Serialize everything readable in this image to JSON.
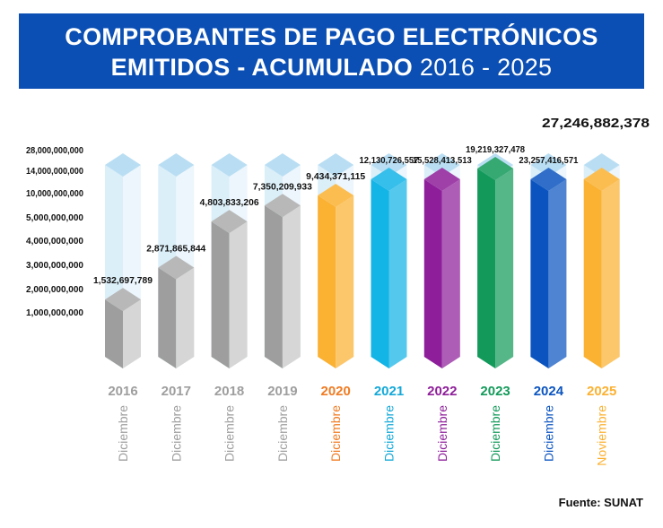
{
  "title_line1": "COMPROBANTES DE PAGO ELECTRÓNICOS",
  "title_line2": "EMITIDOS - ACUMULADO",
  "title_years": "2016 - 2025",
  "source": "Fuente: SUNAT",
  "chart_data": {
    "type": "bar",
    "title": "COMPROBANTES DE PAGO ELECTRÓNICOS EMITIDOS - ACUMULADO 2016 - 2025",
    "scale": "non-linear (broken axis)",
    "ytick_labels": [
      "28,000,000,000",
      "14,000,000,000",
      "10,000,000,000",
      "5,000,000,000",
      "4,000,000,000",
      "3,000,000,000",
      "2,000,000,000",
      "1,000,000,000"
    ],
    "ytick_values": [
      28000000000,
      14000000000,
      10000000000,
      5000000000,
      4000000000,
      3000000000,
      2000000000,
      1000000000
    ],
    "categories": [
      "2016",
      "2017",
      "2018",
      "2019",
      "2020",
      "2021",
      "2022",
      "2023",
      "2024",
      "2025"
    ],
    "periods": [
      "Diciembre",
      "Diciembre",
      "Diciembre",
      "Diciembre",
      "Diciembre",
      "Diciembre",
      "Diciembre",
      "Diciembre",
      "Diciembre",
      "Noviembre"
    ],
    "values": [
      1532697789,
      2871865844,
      4803833206,
      7350209933,
      9434371115,
      12130726557,
      15528413513,
      19219327478,
      23257416571,
      27246882378
    ],
    "value_labels": [
      "1,532,697,789",
      "2,871,865,844",
      "4,803,833,206",
      "7,350,209,933",
      "9,434,371,115",
      "12,130,726,557",
      "15,528,413,513",
      "19,219,327,478",
      "23,257,416,571",
      "27,246,882,378"
    ],
    "colors": {
      "2016": "#9e9e9e",
      "2017": "#9e9e9e",
      "2018": "#9e9e9e",
      "2019": "#9e9e9e",
      "2020": "#fbb131",
      "2021": "#13b4e6",
      "2022": "#8e1e9a",
      "2023": "#139a5a",
      "2024": "#0b54c0",
      "2025": "#fbb131"
    },
    "label_colors": {
      "2016": "#9e9e9e",
      "2017": "#9e9e9e",
      "2018": "#9e9e9e",
      "2019": "#9e9e9e",
      "2020": "#f07b22",
      "2021": "#13a8d8",
      "2022": "#8e1e9a",
      "2023": "#139a5a",
      "2024": "#0b54c0",
      "2025": "#fbb131"
    },
    "ghost_color": "#cfe9f7"
  }
}
